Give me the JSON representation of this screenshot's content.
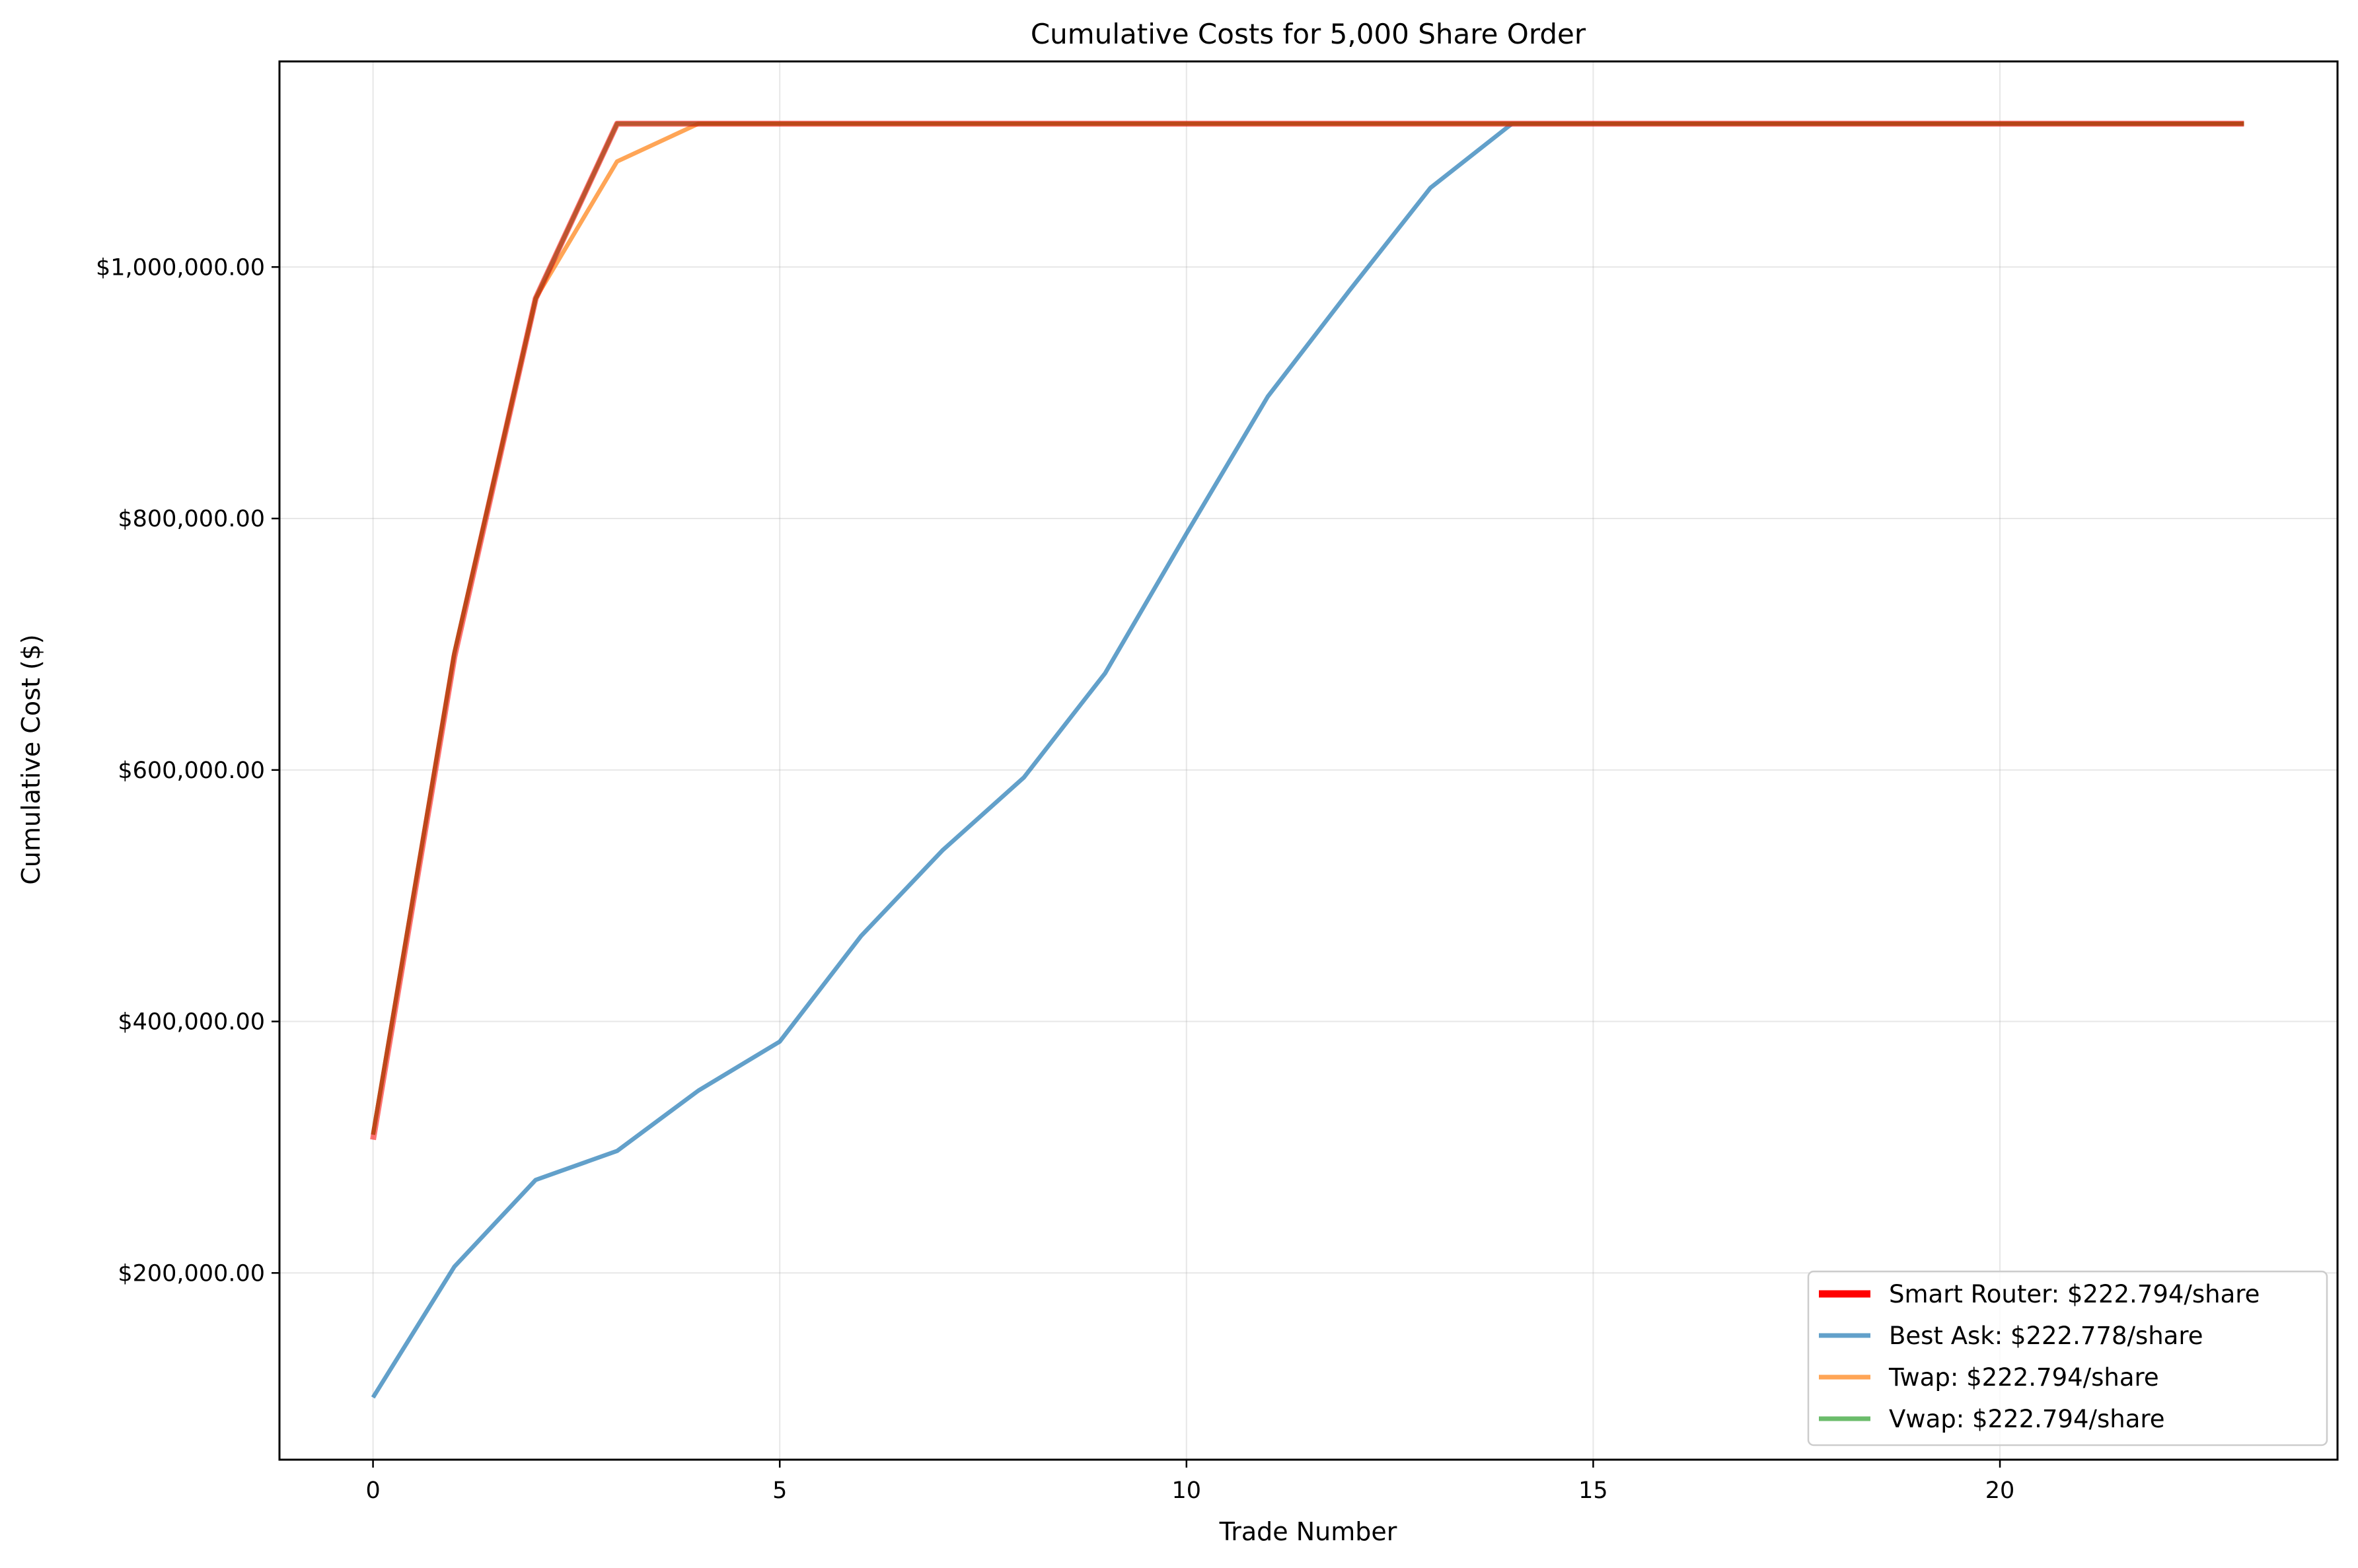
{
  "chart_data": {
    "type": "line",
    "title": "Cumulative Costs for 5,000 Share Order",
    "xlabel": "Trade Number",
    "ylabel": "Cumulative Cost ($)",
    "xlim": [
      -1.15,
      24.15
    ],
    "ylim": [
      51500,
      1163500
    ],
    "xticks": [
      0,
      5,
      10,
      15,
      20
    ],
    "xtick_labels": [
      "0",
      "5",
      "10",
      "15",
      "20"
    ],
    "yticks": [
      200000,
      400000,
      600000,
      800000,
      1000000
    ],
    "ytick_labels": [
      "$200,000.00",
      "$400,000.00",
      "$600,000.00",
      "$800,000.00",
      "$1,000,000.00"
    ],
    "grid": true,
    "legend_position": "lower right",
    "series": [
      {
        "name": "Best Ask: $222.778/share",
        "color": "#1f77b4",
        "opacity": 0.7,
        "x": [
          0,
          1,
          2,
          3,
          4,
          5,
          6,
          7,
          8,
          9,
          10,
          11,
          12,
          13,
          14,
          15,
          16,
          17,
          18,
          19,
          20,
          21,
          22,
          23
        ],
        "values": [
          101000,
          205000,
          274000,
          297000,
          345000,
          384000,
          468000,
          536000,
          594000,
          677000,
          788000,
          897000,
          981000,
          1063000,
          1113900,
          1113900,
          1113900,
          1113900,
          1113900,
          1113900,
          1113900,
          1113900,
          1113900,
          1113900
        ]
      },
      {
        "name": "Twap: $222.794/share",
        "color": "#ff7f0e",
        "opacity": 0.7,
        "x": [
          0,
          1,
          2,
          3,
          4,
          5,
          6,
          7,
          8,
          9,
          10,
          11,
          12,
          13,
          14,
          15,
          16,
          17,
          18,
          19,
          20,
          21,
          22,
          23
        ],
        "values": [
          310000,
          693000,
          975000,
          1084000,
          1113970,
          1113970,
          1113970,
          1113970,
          1113970,
          1113970,
          1113970,
          1113970,
          1113970,
          1113970,
          1113970,
          1113970,
          1113970,
          1113970,
          1113970,
          1113970,
          1113970,
          1113970,
          1113970,
          1113970
        ]
      },
      {
        "name": "Vwap: $222.794/share",
        "color": "#2ca02c",
        "opacity": 0.7,
        "x": [
          0,
          1,
          2,
          3,
          4,
          5,
          6,
          7,
          8,
          9,
          10,
          11,
          12,
          13,
          14,
          15,
          16,
          17,
          18,
          19,
          20,
          21,
          22,
          23
        ],
        "values": [
          310000,
          693000,
          975000,
          1113970,
          1113970,
          1113970,
          1113970,
          1113970,
          1113970,
          1113970,
          1113970,
          1113970,
          1113970,
          1113970,
          1113970,
          1113970,
          1113970,
          1113970,
          1113970,
          1113970,
          1113970,
          1113970,
          1113970,
          1113970
        ]
      },
      {
        "name": "Smart Router: $222.794/share",
        "color": "#ff0000",
        "opacity": 0.55,
        "thick": true,
        "x": [
          0,
          1,
          2,
          3,
          4,
          5,
          6,
          7,
          8,
          9,
          10,
          11,
          12,
          13,
          14,
          15,
          16,
          17,
          18,
          19,
          20,
          21,
          22,
          23
        ],
        "values": [
          306000,
          690000,
          975000,
          1113970,
          1113970,
          1113970,
          1113970,
          1113970,
          1113970,
          1113970,
          1113970,
          1113970,
          1113970,
          1113970,
          1113970,
          1113970,
          1113970,
          1113970,
          1113970,
          1113970,
          1113970,
          1113970,
          1113970,
          1113970
        ]
      }
    ],
    "legend_order": [
      3,
      0,
      1,
      2
    ]
  }
}
